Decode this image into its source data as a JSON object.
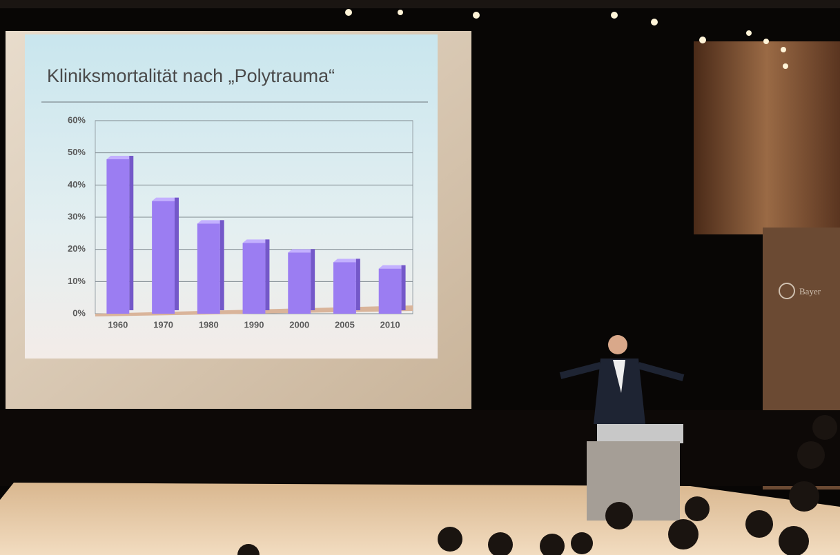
{
  "chart_data": {
    "type": "bar",
    "title": "Kliniksmortalität nach „Polytrauma“",
    "categories": [
      "1960",
      "1970",
      "1980",
      "1990",
      "2000",
      "2005",
      "2010"
    ],
    "values": [
      48,
      35,
      28,
      22,
      19,
      16,
      14
    ],
    "color": "#9b7df2",
    "ylim": [
      0,
      60
    ],
    "yticks": [
      {
        "value": 0,
        "label": "0%"
      },
      {
        "value": 10,
        "label": "10%"
      },
      {
        "value": 20,
        "label": "20%"
      },
      {
        "value": 30,
        "label": "30%"
      },
      {
        "value": 40,
        "label": "40%"
      },
      {
        "value": 50,
        "label": "50%"
      },
      {
        "value": 60,
        "label": "60%"
      }
    ],
    "grid": true
  },
  "wall_logo": "Bayer"
}
